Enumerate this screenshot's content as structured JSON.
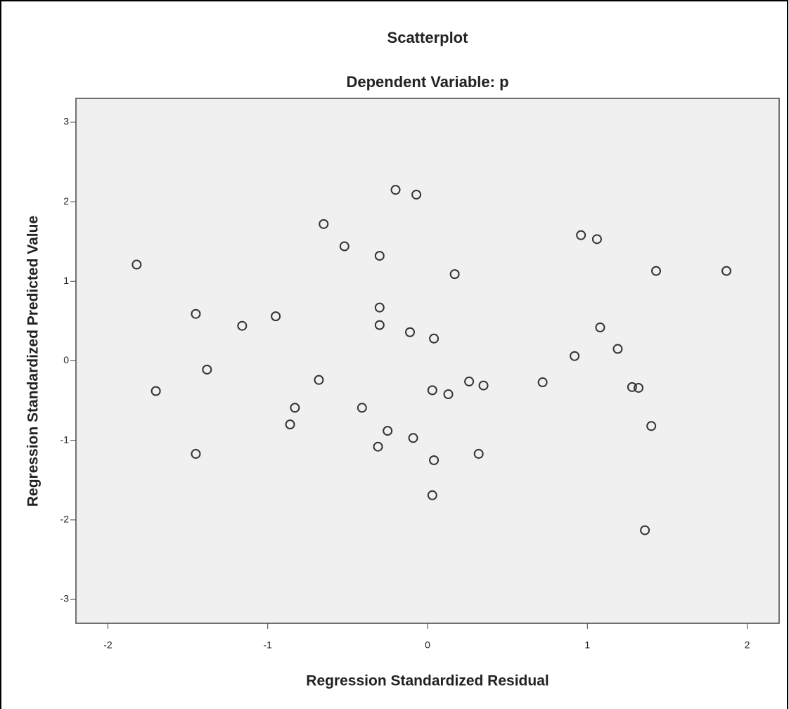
{
  "chart_data": {
    "type": "scatter",
    "title": "Scatterplot",
    "subtitle": "Dependent Variable: p",
    "x_label": "Regression Standardized Residual",
    "y_label": "Regression Standardized Predicted Value",
    "xlim": [
      -2.2,
      2.2
    ],
    "ylim": [
      -3.3,
      3.3
    ],
    "xticks": [
      -2,
      -1,
      0,
      1,
      2
    ],
    "yticks": [
      -3,
      -2,
      -1,
      0,
      1,
      2,
      3
    ],
    "color": "#333333",
    "grid": false,
    "x": [
      -1.82,
      -1.7,
      -1.45,
      -1.45,
      -1.38,
      -1.16,
      -0.95,
      -0.86,
      -0.83,
      -0.68,
      -0.65,
      -0.52,
      -0.41,
      -0.31,
      -0.3,
      -0.3,
      -0.3,
      -0.25,
      -0.2,
      -0.11,
      -0.09,
      -0.07,
      0.03,
      0.03,
      0.04,
      0.04,
      0.13,
      0.17,
      0.26,
      0.32,
      0.35,
      0.72,
      0.92,
      0.96,
      1.06,
      1.08,
      1.19,
      1.28,
      1.32,
      1.36,
      1.4,
      1.43,
      1.87
    ],
    "values": [
      1.21,
      -0.38,
      0.59,
      -1.17,
      -0.11,
      0.44,
      0.56,
      -0.8,
      -0.59,
      -0.24,
      1.72,
      1.44,
      -0.59,
      -1.08,
      0.67,
      0.45,
      1.32,
      -0.88,
      2.15,
      0.36,
      -0.97,
      2.09,
      -0.37,
      -1.69,
      0.28,
      -1.25,
      -0.42,
      1.09,
      -0.26,
      -1.17,
      -0.31,
      -0.27,
      0.06,
      1.58,
      1.53,
      0.42,
      0.15,
      -0.33,
      -0.34,
      -2.13,
      -0.82,
      1.13,
      1.13
    ]
  }
}
